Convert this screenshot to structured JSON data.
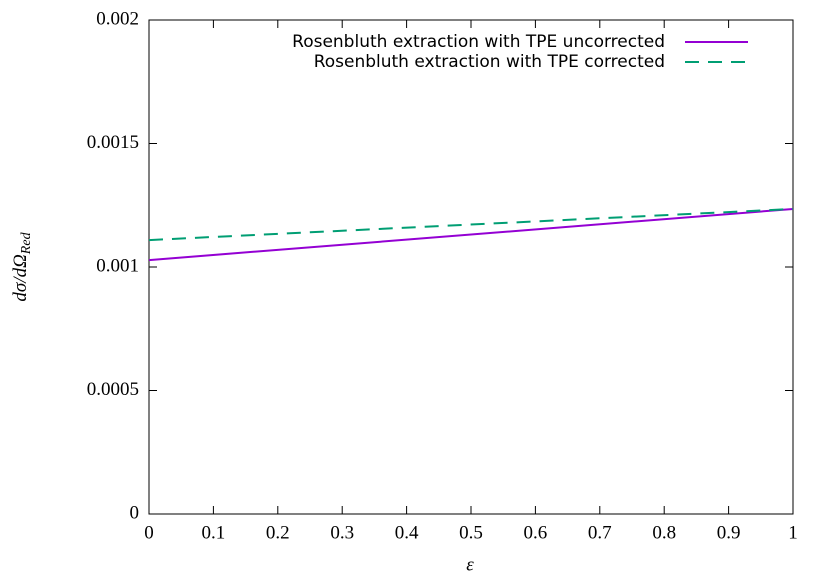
{
  "chart_data": {
    "type": "line",
    "x_label": "ε",
    "y_label": "dσ/dΩ",
    "y_label_sub": "Red",
    "x": [
      0,
      1
    ],
    "series": [
      {
        "name": "Rosenbluth extraction with TPE uncorrected",
        "color": "#9400d3",
        "dash": false,
        "values": [
          0.001028,
          0.001235
        ]
      },
      {
        "name": "Rosenbluth extraction with TPE corrected",
        "color": "#009e73",
        "dash": true,
        "values": [
          0.001109,
          0.001235
        ]
      }
    ],
    "xlim": [
      0,
      1
    ],
    "xticks": [
      0,
      0.1,
      0.2,
      0.3,
      0.4,
      0.5,
      0.6,
      0.7,
      0.8,
      0.9,
      1
    ],
    "ylim": [
      0,
      0.002
    ],
    "yticks": [
      0,
      0.0005,
      0.001,
      0.0015,
      0.002
    ],
    "legend": "top-right"
  }
}
